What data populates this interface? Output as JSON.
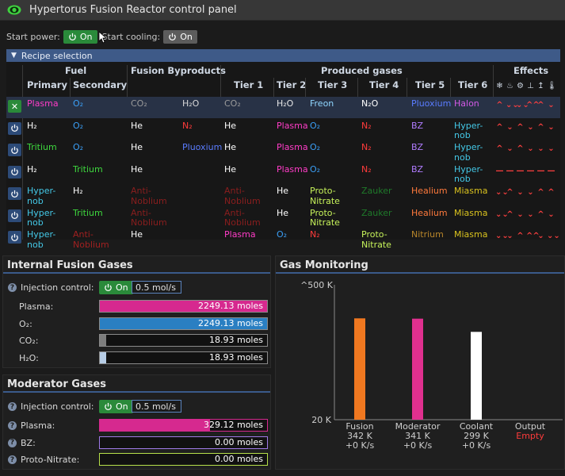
{
  "window": {
    "title": "Hypertorus Fusion Reactor control panel"
  },
  "controls": {
    "start_power_label": "Start power:",
    "start_power_state": "On",
    "start_cooling_label": "Start cooling:",
    "start_cooling_state": "On"
  },
  "recipe": {
    "section_label": "Recipe selection",
    "headers": {
      "fuel": "Fuel",
      "primary": "Primary",
      "secondary": "Secondary",
      "byproducts": "Fusion Byproducts",
      "produced": "Produced gases",
      "tier1": "Tier 1",
      "tier2": "Tier 2",
      "tier3": "Tier 3",
      "tier4": "Tier 4",
      "tier5": "Tier 5",
      "tier6": "Tier 6",
      "effects": "Effects"
    },
    "effect_icons": [
      "snowflake-icon",
      "fire-icon",
      "gear-icon",
      "anchor-icon",
      "arrow-up-icon",
      "thermometer-icon"
    ],
    "rows": [
      {
        "selected": true,
        "primary": "Plasma",
        "primary_c": "#ff3cc7",
        "secondary": "O₂",
        "secondary_c": "#3a9ef5",
        "by1": "CO₂",
        "by1_c": "#9a9a9a",
        "by2": "H₂O",
        "by2_c": "#d8d8d8",
        "t1": "CO₂",
        "t1_c": "#9a9a9a",
        "t2": "H₂O",
        "t2_c": "#e6e6e6",
        "t3": "Freon",
        "t3_c": "#8fd6ff",
        "t4": "N₂O",
        "t4_c": "#ffffff",
        "t5": "Pluoxium",
        "t5_c": "#5a7cff",
        "t6": "Halon",
        "t6_c": "#d35ae6",
        "effects": [
          "^",
          "⌄⌄",
          "⌄⌄",
          "^^",
          "^",
          "⌄"
        ]
      },
      {
        "selected": false,
        "primary": "H₂",
        "primary_c": "#ffffff",
        "secondary": "O₂",
        "secondary_c": "#3a9ef5",
        "by1": "He",
        "by1_c": "#ffffff",
        "by2": "N₂",
        "by2_c": "#ff3b3b",
        "t1": "He",
        "t1_c": "#ffffff",
        "t2": "Plasma",
        "t2_c": "#ff3cc7",
        "t3": "O₂",
        "t3_c": "#3a9ef5",
        "t4": "N₂",
        "t4_c": "#ff3b3b",
        "t5": "BZ",
        "t5_c": "#b07cff",
        "t6": "Hyper-nob",
        "t6_c": "#44c9e8",
        "effects": [
          "^",
          "⌄",
          "^",
          "⌄",
          "^",
          "⌄"
        ]
      },
      {
        "selected": false,
        "primary": "Tritium",
        "primary_c": "#3ed83e",
        "secondary": "O₂",
        "secondary_c": "#3a9ef5",
        "by1": "He",
        "by1_c": "#ffffff",
        "by2": "Pluoxium",
        "by2_c": "#5a7cff",
        "t1": "He",
        "t1_c": "#ffffff",
        "t2": "Plasma",
        "t2_c": "#ff3cc7",
        "t3": "O₂",
        "t3_c": "#3a9ef5",
        "t4": "N₂",
        "t4_c": "#ff3b3b",
        "t5": "BZ",
        "t5_c": "#b07cff",
        "t6": "Hyper-nob",
        "t6_c": "#44c9e8",
        "effects": [
          "^",
          "⌄",
          "^",
          "⌄",
          "⌄",
          "⌄"
        ]
      },
      {
        "selected": false,
        "primary": "H₂",
        "primary_c": "#ffffff",
        "secondary": "Tritium",
        "secondary_c": "#3ed83e",
        "by1": "He",
        "by1_c": "#ffffff",
        "by2": "",
        "by2_c": "#ffffff",
        "t1": "He",
        "t1_c": "#ffffff",
        "t2": "Plasma",
        "t2_c": "#ff3cc7",
        "t3": "O₂",
        "t3_c": "#3a9ef5",
        "t4": "N₂",
        "t4_c": "#ff3b3b",
        "t5": "BZ",
        "t5_c": "#b07cff",
        "t6": "Hyper-nob",
        "t6_c": "#44c9e8",
        "effects": [
          "—",
          "—",
          "—",
          "—",
          "—",
          "—"
        ]
      },
      {
        "selected": false,
        "primary": "Hyper-nob",
        "primary_c": "#44c9e8",
        "secondary": "H₂",
        "secondary_c": "#ffffff",
        "by1": "Anti-Noblium",
        "by1_c": "#8a1e1e",
        "by2": "",
        "by2_c": "#ffffff",
        "t1": "Anti-Noblium",
        "t1_c": "#8a1e1e",
        "t2": "He",
        "t2_c": "#ffffff",
        "t3": "Proto-Nitrate",
        "t3_c": "#c6f25a",
        "t4": "Zauker",
        "t4_c": "#1f7a2a",
        "t5": "Healium",
        "t5_c": "#ff7a3c",
        "t6": "Miasma",
        "t6_c": "#d9c21e",
        "effects": [
          "⌄⌄",
          "^",
          "⌄",
          "⌄",
          "^",
          "^"
        ]
      },
      {
        "selected": false,
        "primary": "Hyper-nob",
        "primary_c": "#44c9e8",
        "secondary": "Tritium",
        "secondary_c": "#3ed83e",
        "by1": "Anti-Noblium",
        "by1_c": "#8a1e1e",
        "by2": "",
        "by2_c": "#ffffff",
        "t1": "Anti-Noblium",
        "t1_c": "#8a1e1e",
        "t2": "He",
        "t2_c": "#ffffff",
        "t3": "Proto-Nitrate",
        "t3_c": "#c6f25a",
        "t4": "Zauker",
        "t4_c": "#1f7a2a",
        "t5": "Healium",
        "t5_c": "#ff7a3c",
        "t6": "Miasma",
        "t6_c": "#d9c21e",
        "effects": [
          "⌄⌄",
          "^",
          "⌄",
          "⌄",
          "^",
          "⌄"
        ]
      },
      {
        "selected": false,
        "primary": "Hyper-nob",
        "primary_c": "#44c9e8",
        "secondary": "Anti-Noblium",
        "secondary_c": "#a02020",
        "by1": "He",
        "by1_c": "#ffffff",
        "by2": "",
        "by2_c": "#ffffff",
        "t1": "Plasma",
        "t1_c": "#ff3cc7",
        "t2": "O₂",
        "t2_c": "#3a9ef5",
        "t3": "N₂",
        "t3_c": "#ff3b3b",
        "t4": "Proto-Nitrate",
        "t4_c": "#c6f25a",
        "t5": "Nitrium",
        "t5_c": "#b8862a",
        "t6": "Miasma",
        "t6_c": "#d9c21e",
        "effects": [
          "⌄⌄",
          "⌄",
          "^",
          "^^",
          "⌄",
          "⌄⌄"
        ]
      }
    ]
  },
  "internal": {
    "title": "Internal Fusion Gases",
    "injection_label": "Injection control:",
    "injection_state": "On",
    "injection_rate": "0.5 mol/s",
    "gases": [
      {
        "label": "Plasma:",
        "value": "2249.13 moles",
        "fill": 1.0,
        "color": "#d6298f"
      },
      {
        "label": "O₂:",
        "value": "2249.13 moles",
        "fill": 1.0,
        "color": "#2a7fc2"
      },
      {
        "label": "CO₂:",
        "value": "18.93 moles",
        "fill": 0.04,
        "color": "#7d7d7d"
      },
      {
        "label": "H₂O:",
        "value": "18.93 moles",
        "fill": 0.04,
        "color": "#b7cde6"
      }
    ]
  },
  "moderator": {
    "title": "Moderator Gases",
    "injection_label": "Injection control:",
    "injection_state": "On",
    "injection_rate": "0.5 mol/s",
    "gases": [
      {
        "label": "Plasma:",
        "value": "329.12 moles",
        "fill": 0.66,
        "color": "#d6298f",
        "border": "#d6298f"
      },
      {
        "label": "BZ:",
        "value": "0.00 moles",
        "fill": 0,
        "color": "#b07cff",
        "border": "#9f7ae8"
      },
      {
        "label": "Proto-Nitrate:",
        "value": "0.00 moles",
        "fill": 0,
        "color": "#c6f25a",
        "border": "#b6e04a"
      }
    ]
  },
  "monitoring": {
    "title": "Gas Monitoring",
    "chart_data": {
      "type": "bar",
      "ylabel_top": "500 K",
      "ylabel_bottom": "20 K",
      "ylim": [
        20,
        500
      ],
      "categories": [
        "Fusion",
        "Moderator",
        "Coolant",
        "Output"
      ],
      "temps_k": [
        342,
        341,
        299,
        null
      ],
      "temp_labels": [
        "342 K",
        "341 K",
        "299 K",
        "Empty"
      ],
      "rate_labels": [
        "+0 K/s",
        "+0 K/s",
        "+0 K/s",
        ""
      ],
      "colors": [
        "#f07820",
        "#e0308f",
        "#ffffff",
        "#ff3b3b"
      ]
    }
  }
}
